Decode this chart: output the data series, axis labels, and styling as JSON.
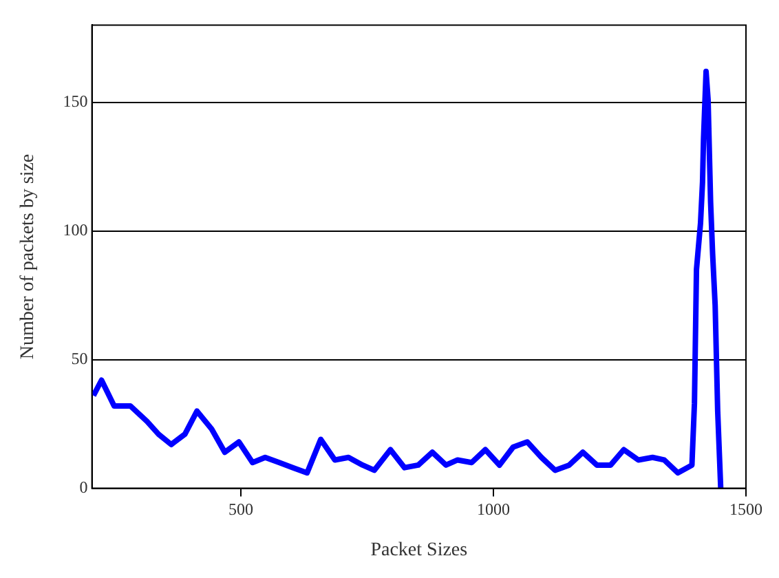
{
  "chart_data": {
    "type": "line",
    "xlabel": "Packet Sizes",
    "ylabel": "Number of packets by size",
    "xlim": [
      205,
      1500
    ],
    "ylim": [
      0,
      180
    ],
    "xticks": [
      500,
      1000,
      1500
    ],
    "yticks": [
      0,
      50,
      100,
      150
    ],
    "grid": "y",
    "legend": false,
    "marker": "none",
    "line_style": "solid",
    "series": [
      {
        "color": "#0000ff",
        "x": [
          208,
          224,
          249,
          281,
          314,
          337,
          362,
          389,
          413,
          442,
          468,
          496,
          523,
          548,
          576,
          603,
          631,
          658,
          686,
          713,
          741,
          764,
          796,
          824,
          851,
          879,
          906,
          929,
          957,
          984,
          1012,
          1039,
          1067,
          1095,
          1122,
          1150,
          1177,
          1205,
          1232,
          1258,
          1287,
          1315,
          1338,
          1365,
          1393,
          1398,
          1402,
          1410,
          1414,
          1416,
          1421,
          1425,
          1430,
          1434,
          1439,
          1444,
          1448,
          1450
        ],
        "values": [
          36,
          42,
          32,
          32,
          26,
          21,
          17,
          21,
          30,
          23,
          14,
          18,
          10,
          12,
          10,
          8,
          6,
          19,
          11,
          12,
          9,
          7,
          15,
          8,
          9,
          14,
          9,
          11,
          10,
          15,
          9,
          16,
          18,
          12,
          7,
          9,
          14,
          9,
          9,
          15,
          11,
          12,
          11,
          6,
          9,
          33,
          85,
          103,
          119,
          136,
          162,
          151,
          111,
          91,
          71,
          30,
          10,
          0
        ]
      }
    ]
  }
}
